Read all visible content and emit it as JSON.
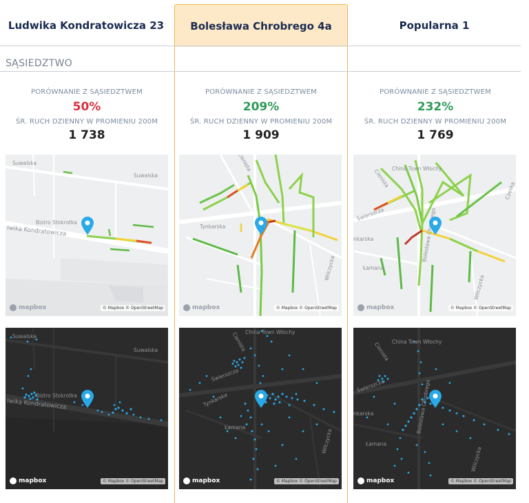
{
  "columns": [
    {
      "title": "Ludwika Kondratowicza 23",
      "comparison_label": "PORÓWNANIE Z SĄSIEDZTWEM",
      "comparison_value": "50%",
      "traffic_label": "ŚR. RUCH DZIENNY W PROMIENIU 200M",
      "traffic_value": "1 738",
      "map_labels": {
        "a": "Suwalska",
        "b": "Suwalska",
        "c": "Bistro Stokrotka",
        "d": "Iwika Kondratowicza"
      }
    },
    {
      "title": "Bolesława Chrobrego 4a",
      "comparison_label": "PORÓWNANIE Z SĄSIEDZTWEM",
      "comparison_value": "209%",
      "traffic_label": "ŚR. RUCH DZIENNY W PROMIENIU 200M",
      "traffic_value": "1 909",
      "map_labels": {
        "a": "China Town Włochy",
        "b": "Cienista",
        "c": "Świerszcza",
        "d": "Tynkarska",
        "e": "Łamana",
        "f": "Wilczycka"
      }
    },
    {
      "title": "Popularna 1",
      "comparison_label": "PORÓWNANIE Z SĄSIEDZTWEM",
      "comparison_value": "232%",
      "traffic_label": "ŚR. RUCH DZIENNY W PROMIENIU 200M",
      "traffic_value": "1 769",
      "map_labels": {
        "a": "China Town Włochy",
        "b": "Cienista",
        "c": "Świerszcza",
        "d": "Bolesława Chrobrego",
        "e": "Łamana",
        "f": "Wilczycka",
        "g": "Czeska",
        "h": "nkarska"
      }
    }
  ],
  "section_title": "SĄSIEDZTWO",
  "map_logo": "mapbox",
  "map_attribution": "© Mapbox © OpenStreetMap",
  "colors": {
    "highlight_bg": "#fde9c8",
    "highlight_border": "#f2b451",
    "negative": "#d9313f",
    "positive": "#2e9a57",
    "title": "#1a2a4f",
    "pin": "#29a9e8"
  }
}
